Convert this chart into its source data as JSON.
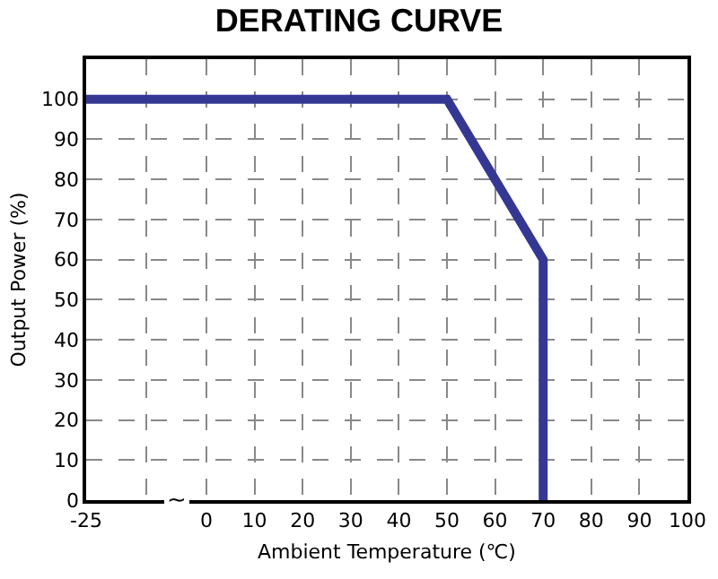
{
  "chart_data": {
    "type": "line",
    "title": "DERATING CURVE",
    "xlabel": "Ambient Temperature (℃)",
    "ylabel": "Output Power (%)",
    "x": [
      -25,
      50,
      70,
      70
    ],
    "series": [
      {
        "color": "#343893",
        "values": [
          100,
          100,
          60,
          0
        ]
      }
    ],
    "xlim": [
      -25,
      100
    ],
    "xticks": [
      -25,
      {
        "value": -12.5,
        "label": null
      },
      0,
      10,
      20,
      30,
      40,
      50,
      60,
      70,
      80,
      90,
      100
    ],
    "ylim": [
      0,
      110
    ],
    "yticks": [
      0,
      10,
      20,
      30,
      40,
      50,
      60,
      70,
      80,
      90,
      100
    ],
    "annotations": [
      {
        "text": "~",
        "x": -6,
        "y": 0
      }
    ],
    "grid": true,
    "marker": "none",
    "line_style": "solid"
  }
}
